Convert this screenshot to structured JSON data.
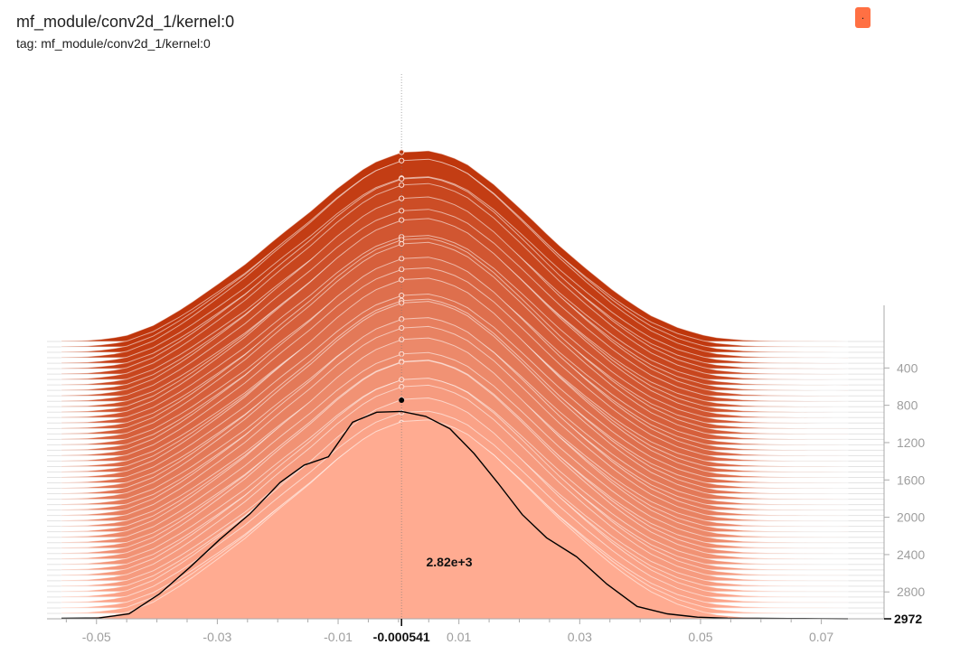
{
  "title": "mf_module/conv2d_1/kernel:0",
  "subtitle": "tag: mf_module/conv2d_1/kernel:0",
  "legend_badge": {
    "label": ".",
    "color": "#ff7043"
  },
  "chart_data": {
    "type": "area",
    "mode": "offset",
    "title": "mf_module/conv2d_1/kernel:0",
    "xlabel": "",
    "ylabel": "",
    "xlim": [
      -0.0558,
      0.0744
    ],
    "x_ticks": [
      -0.05,
      -0.03,
      -0.01,
      0.01,
      0.03,
      0.05,
      0.07
    ],
    "x_tick_labels": [
      "-0.05",
      "-0.03",
      "-0.01",
      "0.01",
      "0.03",
      "0.05",
      "0.07"
    ],
    "step_ticks": [
      400,
      800,
      1200,
      1600,
      2000,
      2400,
      2800
    ],
    "step_range": [
      0,
      2972
    ],
    "count_max": 2820,
    "color_old": "#bf360c",
    "color_new": "#ffab91",
    "profile": {
      "x": [
        -0.0558,
        -0.0506,
        -0.0455,
        -0.0404,
        -0.0353,
        -0.0302,
        -0.0251,
        -0.0199,
        -0.0148,
        -0.0097,
        -0.0046,
        0.0005,
        0.0056,
        0.0107,
        0.0158,
        0.0209,
        0.026,
        0.0311,
        0.0362,
        0.0413,
        0.0465,
        0.0516,
        0.0567,
        0.0618,
        0.0669,
        0.072,
        0.0744
      ],
      "y": [
        5,
        15,
        60,
        200,
        420,
        680,
        950,
        1270,
        1560,
        1880,
        2150,
        2290,
        2310,
        2180,
        1900,
        1560,
        1200,
        880,
        580,
        330,
        160,
        55,
        18,
        6,
        2,
        1,
        0
      ]
    },
    "highlight": {
      "step": 2972,
      "x": [
        -0.0558,
        -0.0496,
        -0.0446,
        -0.0396,
        -0.0346,
        -0.0296,
        -0.0246,
        -0.0196,
        -0.0156,
        -0.0116,
        -0.0076,
        -0.0036,
        0.0005,
        0.0045,
        0.0085,
        0.0125,
        0.0165,
        0.0205,
        0.0245,
        0.0295,
        0.0345,
        0.0395,
        0.0445,
        0.0495,
        0.0545,
        0.0595,
        0.0645,
        0.0695,
        0.0744
      ],
      "y": [
        5,
        10,
        60,
        300,
        620,
        960,
        1270,
        1650,
        1860,
        1960,
        2380,
        2500,
        2510,
        2450,
        2300,
        2000,
        1640,
        1260,
        980,
        750,
        420,
        150,
        60,
        20,
        8,
        5,
        3,
        2,
        0
      ]
    },
    "hover": {
      "x_label": "-0.000541",
      "step_label": "2972",
      "count_label": "2.82e+3"
    }
  }
}
